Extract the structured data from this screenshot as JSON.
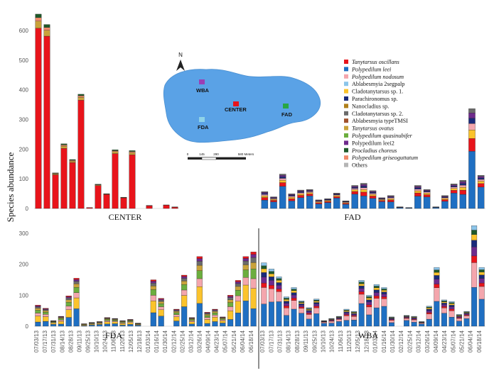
{
  "chart_data": {
    "type": "bar",
    "stacked": true,
    "ylabel": "Species abundance",
    "legend_placement": "right",
    "species": [
      {
        "name": "Tanytarsus oscillans",
        "color": "#e8141b",
        "italic": true
      },
      {
        "name": "Polypedilum leei",
        "color": "#1f6fc2",
        "italic": true
      },
      {
        "name": "Polypedilum nodosum",
        "color": "#f4a6ad",
        "italic": true
      },
      {
        "name": "Ablabesmyia 2segpalp",
        "color": "#8bc5ea",
        "italic": false
      },
      {
        "name": "Cladotanytarsus sp. 1.",
        "color": "#fbc32c",
        "italic": false
      },
      {
        "name": "Parachironomus sp.",
        "color": "#1a2a7a",
        "italic": false
      },
      {
        "name": "Nanocladius sp.",
        "color": "#b0801c",
        "italic": false
      },
      {
        "name": "Cladotanytarsus sp. 2.",
        "color": "#6b6b6b",
        "italic": false
      },
      {
        "name": "Ablabesmyia typeTMSI",
        "color": "#a0522d",
        "italic": false
      },
      {
        "name": "Tanytarsus ovatus",
        "color": "#c9a23a",
        "italic": true
      },
      {
        "name": "Polypedilum quasinubifer",
        "color": "#6cae3e",
        "italic": true
      },
      {
        "name": "Polypedilum leei2",
        "color": "#6e2a8c",
        "italic": false
      },
      {
        "name": "Procladius choreus",
        "color": "#1f5a2a",
        "italic": true
      },
      {
        "name": "Polypedilum griseoguttatum",
        "color": "#f08a6a",
        "italic": true
      },
      {
        "name": "Others",
        "color": "#b5b5b5",
        "italic": false
      }
    ],
    "panels": [
      {
        "id": "CENTER",
        "label": "CENTER",
        "ylim": [
          0,
          650
        ],
        "yticks": [
          0,
          100,
          200,
          300,
          400,
          500,
          600
        ],
        "totals": [
          655,
          620,
          120,
          218,
          165,
          385,
          3,
          82,
          50,
          198,
          38,
          195,
          0,
          10,
          0,
          12,
          5
        ]
      },
      {
        "id": "FAD",
        "label": "FAD",
        "ylim": [
          0,
          300
        ],
        "yticks": [
          0,
          100,
          200,
          300
        ],
        "totals": [
          55,
          38,
          112,
          48,
          60,
          62,
          28,
          32,
          50,
          25,
          75,
          82,
          58,
          35,
          42,
          5,
          3,
          75,
          62,
          5,
          42,
          80,
          92,
          325,
          108
        ]
      },
      {
        "id": "FDA",
        "label": "FDA",
        "ylim": [
          0,
          330
        ],
        "yticks": [
          0,
          100,
          200,
          300
        ],
        "totals": [
          68,
          58,
          18,
          32,
          98,
          155,
          8,
          12,
          15,
          28,
          25,
          18,
          22,
          10,
          0,
          150,
          90,
          0,
          55,
          165,
          28,
          225,
          45,
          55,
          30,
          100,
          148,
          225,
          240
        ]
      },
      {
        "id": "WBA",
        "label": "WBA",
        "ylim": [
          0,
          330
        ],
        "yticks": [],
        "totals": [
          205,
          185,
          160,
          95,
          125,
          82,
          60,
          88,
          18,
          25,
          32,
          55,
          48,
          148,
          100,
          135,
          125,
          30,
          0,
          35,
          32,
          15,
          65,
          190,
          85,
          80,
          38,
          48,
          325,
          190
        ]
      }
    ],
    "x_dates": [
      "07/03/13",
      "07/17/13",
      "07/31/13",
      "08/14/13",
      "08/28/13",
      "09/11/13",
      "09/25/13",
      "10/10/13",
      "10/24/13",
      "11/06/13",
      "11/20/13",
      "12/05/13",
      "12/18/13",
      "01/03/14",
      "01/16/14",
      "01/30/14",
      "02/12/14",
      "02/25/14",
      "03/12/14",
      "03/26/14",
      "04/09/14",
      "04/23/14",
      "05/07/14",
      "05/21/14",
      "06/04/14",
      "06/18/14"
    ],
    "x_dates_right": [
      "07/03/13",
      "07/17/13",
      "07/31/13",
      "08/14/13",
      "08/28/13",
      "09/11/13",
      "09/25/13",
      "10/10/13",
      "10/24/13",
      "11/06/13",
      "11/20/13",
      "12/05/13",
      "12/18/13",
      "01/03/14",
      "01/16/14",
      "01/30/14",
      "02/12/14",
      "02/25/14",
      "03/12/14",
      "03/26/14",
      "04/09/14",
      "04/23/14",
      "05/07/14",
      "05/21/14",
      "06/04/14",
      "06/18/14"
    ]
  },
  "map": {
    "compass": "N",
    "sites": [
      {
        "name": "WBA",
        "color": "#9b3fb5"
      },
      {
        "name": "CENTER",
        "color": "#e8141b"
      },
      {
        "name": "FAD",
        "color": "#28a745"
      },
      {
        "name": "FDA",
        "color": "#8fd3e8"
      }
    ],
    "scale_labels": [
      "0",
      "145",
      "290",
      "580 Meters"
    ]
  }
}
